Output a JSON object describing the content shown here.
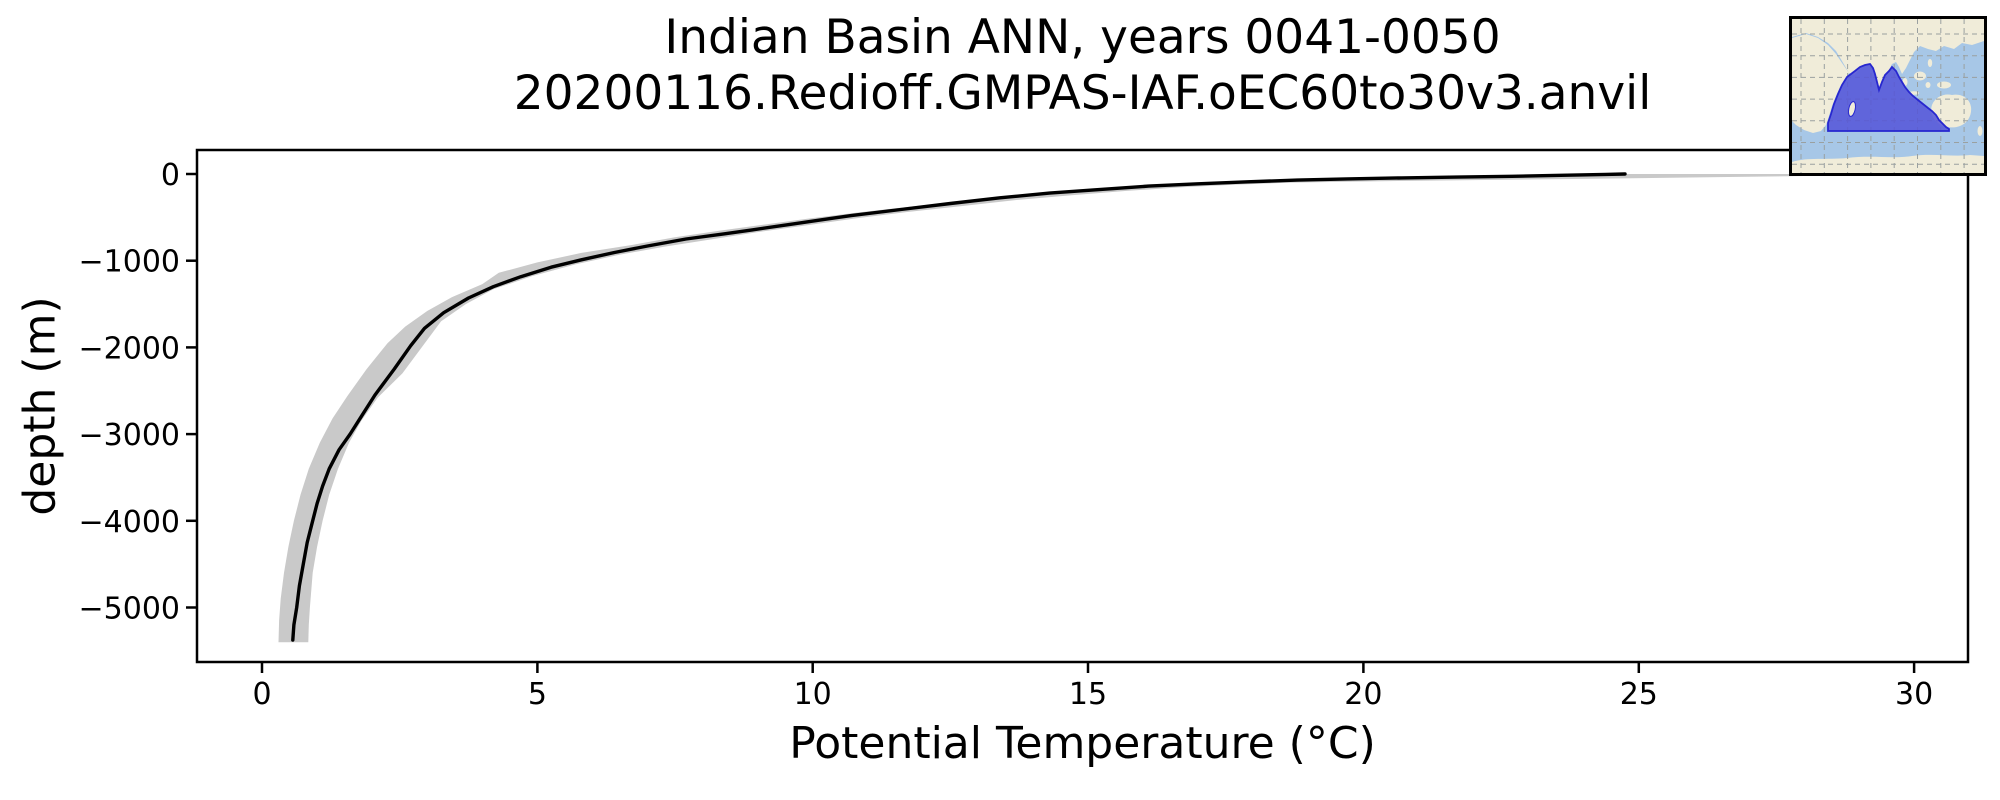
{
  "title": {
    "line1": "Indian Basin ANN, years 0041-0050",
    "line2": "20200116.Redioff.GMPAS-IAF.oEC60to30v3.anvil"
  },
  "chart_data": {
    "type": "line",
    "title": "Indian Basin ANN, years 0041-0050",
    "subtitle": "20200116.Redioff.GMPAS-IAF.oEC60to30v3.anvil",
    "xlabel": "Potential Temperature (°C)",
    "ylabel": "depth (m)",
    "xlim": [
      -1.2,
      31.0
    ],
    "ylim": [
      -5630,
      280
    ],
    "grid": false,
    "legend": "none",
    "x_ticks": {
      "values": [
        0,
        5,
        10,
        15,
        20,
        25,
        30
      ],
      "labels": [
        "0",
        "5",
        "10",
        "15",
        "20",
        "25",
        "30"
      ]
    },
    "y_ticks": {
      "values": [
        0,
        -1000,
        -2000,
        -3000,
        -4000,
        -5000
      ],
      "labels": [
        "0",
        "−1000",
        "−2000",
        "−3000",
        "−4000",
        "−5000"
      ]
    },
    "series": [
      {
        "name": "mean-profile",
        "style": "line",
        "color": "#000000",
        "points": [
          [
            0.56,
            -5375
          ],
          [
            0.58,
            -5200
          ],
          [
            0.63,
            -5000
          ],
          [
            0.68,
            -4750
          ],
          [
            0.75,
            -4500
          ],
          [
            0.82,
            -4250
          ],
          [
            0.9,
            -4050
          ],
          [
            1.0,
            -3800
          ],
          [
            1.1,
            -3600
          ],
          [
            1.22,
            -3400
          ],
          [
            1.4,
            -3180
          ],
          [
            1.6,
            -3000
          ],
          [
            1.8,
            -2800
          ],
          [
            2.05,
            -2550
          ],
          [
            2.4,
            -2250
          ],
          [
            2.7,
            -1980
          ],
          [
            2.95,
            -1780
          ],
          [
            3.3,
            -1600
          ],
          [
            3.75,
            -1430
          ],
          [
            4.2,
            -1300
          ],
          [
            4.7,
            -1185
          ],
          [
            5.25,
            -1075
          ],
          [
            5.8,
            -990
          ],
          [
            6.4,
            -905
          ],
          [
            7.0,
            -830
          ],
          [
            7.7,
            -750
          ],
          [
            8.4,
            -690
          ],
          [
            8.9,
            -645
          ],
          [
            9.6,
            -580
          ],
          [
            10.3,
            -515
          ],
          [
            10.7,
            -480
          ],
          [
            11.6,
            -410
          ],
          [
            12.5,
            -340
          ],
          [
            13.4,
            -275
          ],
          [
            14.3,
            -220
          ],
          [
            15.2,
            -180
          ],
          [
            16.1,
            -140
          ],
          [
            17.0,
            -113
          ],
          [
            17.9,
            -90
          ],
          [
            18.8,
            -70
          ],
          [
            19.7,
            -57
          ],
          [
            20.7,
            -45
          ],
          [
            21.7,
            -36
          ],
          [
            22.7,
            -26
          ],
          [
            23.7,
            -14
          ],
          [
            24.4,
            -5
          ],
          [
            24.75,
            0
          ]
        ]
      },
      {
        "name": "min-max-range-band",
        "style": "band",
        "color": "#c9c9c9",
        "upper": [
          [
            0.84,
            -5400
          ],
          [
            0.85,
            -5200
          ],
          [
            0.87,
            -5000
          ],
          [
            0.92,
            -4600
          ],
          [
            1.0,
            -4300
          ],
          [
            1.1,
            -4000
          ],
          [
            1.22,
            -3700
          ],
          [
            1.38,
            -3400
          ],
          [
            1.58,
            -3100
          ],
          [
            1.8,
            -2850
          ],
          [
            2.1,
            -2580
          ],
          [
            2.55,
            -2300
          ],
          [
            2.9,
            -2000
          ],
          [
            3.25,
            -1700
          ],
          [
            3.7,
            -1500
          ],
          [
            4.2,
            -1330
          ],
          [
            4.9,
            -1180
          ],
          [
            5.7,
            -1040
          ],
          [
            6.5,
            -930
          ],
          [
            7.3,
            -840
          ],
          [
            8.1,
            -760
          ],
          [
            9.0,
            -670
          ],
          [
            9.9,
            -590
          ],
          [
            10.8,
            -510
          ],
          [
            11.7,
            -440
          ],
          [
            12.7,
            -370
          ],
          [
            13.7,
            -300
          ],
          [
            14.7,
            -245
          ],
          [
            15.7,
            -195
          ],
          [
            16.7,
            -153
          ],
          [
            17.7,
            -122
          ],
          [
            18.6,
            -102
          ],
          [
            19.8,
            -88
          ],
          [
            21.2,
            -76
          ],
          [
            22.6,
            -66
          ],
          [
            24.0,
            -56
          ],
          [
            25.4,
            -45
          ],
          [
            26.8,
            -34
          ],
          [
            28.0,
            -23
          ],
          [
            29.0,
            -12
          ],
          [
            29.55,
            -2
          ],
          [
            29.55,
            0
          ]
        ],
        "lower": [
          [
            0.3,
            -5400
          ],
          [
            0.31,
            -5150
          ],
          [
            0.34,
            -4900
          ],
          [
            0.4,
            -4600
          ],
          [
            0.48,
            -4300
          ],
          [
            0.58,
            -4000
          ],
          [
            0.7,
            -3700
          ],
          [
            0.85,
            -3400
          ],
          [
            1.05,
            -3100
          ],
          [
            1.28,
            -2820
          ],
          [
            1.55,
            -2560
          ],
          [
            1.9,
            -2250
          ],
          [
            2.28,
            -1950
          ],
          [
            2.6,
            -1760
          ],
          [
            3.0,
            -1580
          ],
          [
            3.45,
            -1420
          ],
          [
            4.0,
            -1270
          ],
          [
            4.3,
            -1140
          ],
          [
            5.0,
            -1020
          ],
          [
            5.8,
            -910
          ],
          [
            6.7,
            -820
          ],
          [
            7.5,
            -730
          ],
          [
            8.3,
            -655
          ],
          [
            9.1,
            -585
          ],
          [
            9.9,
            -515
          ],
          [
            10.8,
            -445
          ],
          [
            11.8,
            -375
          ],
          [
            12.8,
            -310
          ],
          [
            13.8,
            -255
          ],
          [
            14.8,
            -205
          ],
          [
            15.8,
            -165
          ],
          [
            16.8,
            -132
          ],
          [
            17.8,
            -105
          ],
          [
            18.8,
            -84
          ],
          [
            20.0,
            -66
          ],
          [
            21.2,
            -50
          ],
          [
            22.4,
            -34
          ],
          [
            23.4,
            -20
          ],
          [
            24.2,
            -8
          ],
          [
            24.75,
            0
          ]
        ]
      }
    ]
  },
  "inset_map": {
    "description": "World map inset with Indian Ocean basin region highlighted",
    "colors": {
      "ocean": "#a7c7e7",
      "land": "#f0ecd9",
      "grid": "#9aa0a0",
      "region_fill": "#5353d8",
      "region_edge": "#2727cf",
      "border": "#000000"
    }
  },
  "plot_style": {
    "line_color": "#000000",
    "band_color": "#c9c9c9",
    "spine_color": "#000000",
    "background": "#ffffff"
  }
}
